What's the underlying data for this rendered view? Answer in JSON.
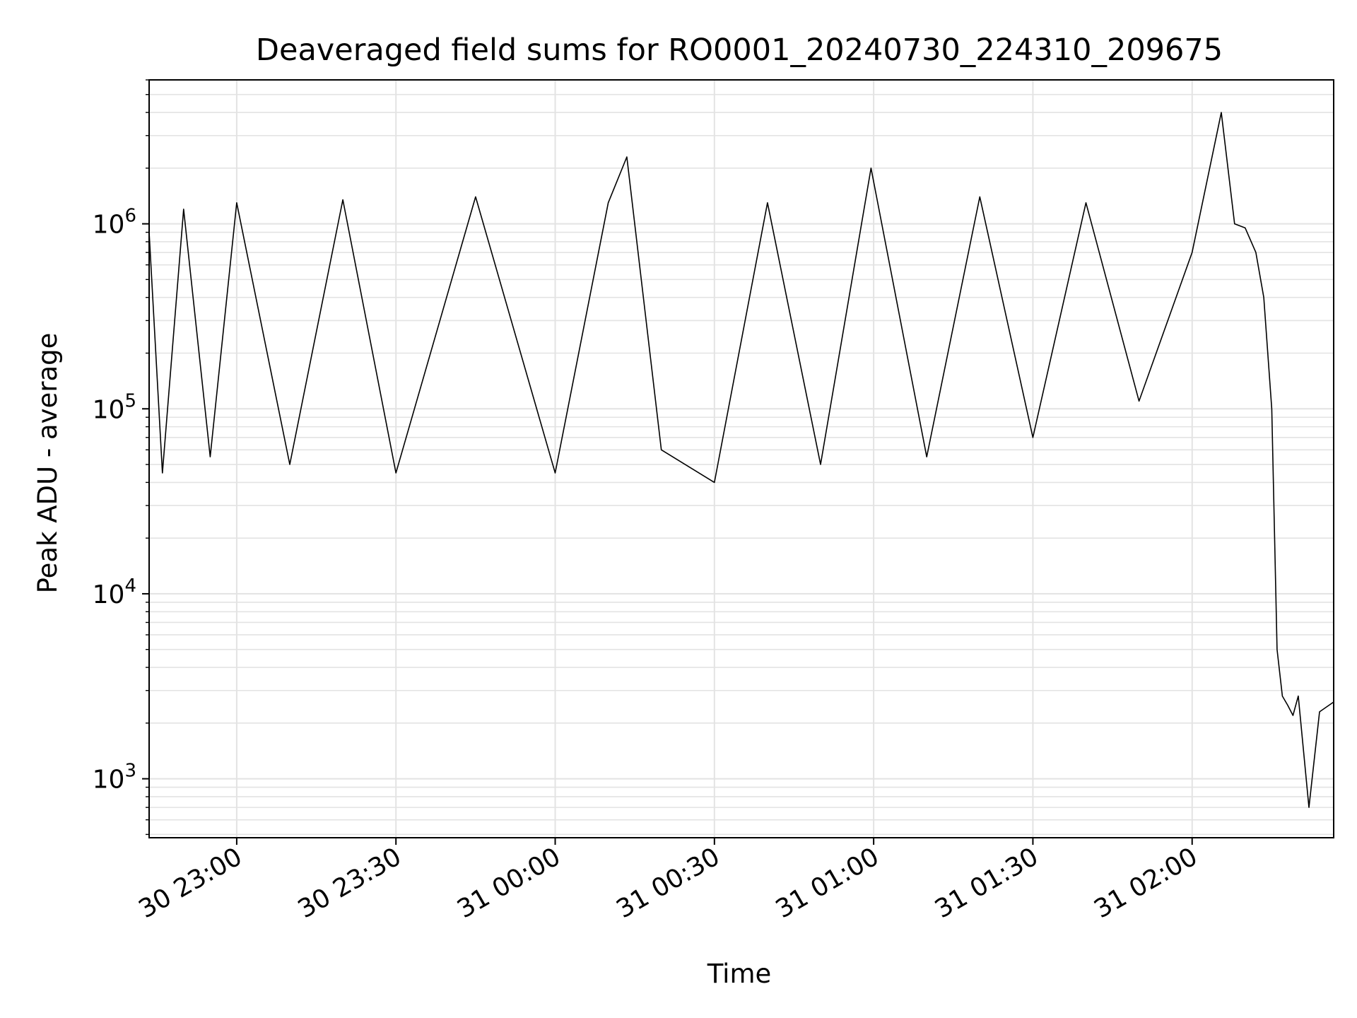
{
  "chart_data": {
    "type": "line",
    "title": "Deaveraged field sums for RO0001_20240730_224310_209675",
    "xlabel": "Time",
    "ylabel": "Peak ADU - average",
    "yscale": "log",
    "ylim": [
      480,
      6000000
    ],
    "xlim": [
      "2024-07-30 22:43:30",
      "2024-07-31 02:26:40"
    ],
    "grid": true,
    "line_color": "#000000",
    "grid_color": "#e3e3e3",
    "x_ticks": [
      {
        "t": "2024-07-30 23:00",
        "label": "30 23:00"
      },
      {
        "t": "2024-07-30 23:30",
        "label": "30 23:30"
      },
      {
        "t": "2024-07-31 00:00",
        "label": "31 00:00"
      },
      {
        "t": "2024-07-31 00:30",
        "label": "31 00:30"
      },
      {
        "t": "2024-07-31 01:00",
        "label": "31 01:00"
      },
      {
        "t": "2024-07-31 01:30",
        "label": "31 01:30"
      },
      {
        "t": "2024-07-31 02:00",
        "label": "31 02:00"
      }
    ],
    "y_ticks": [
      {
        "value": 1000,
        "base": "10",
        "exp": "3"
      },
      {
        "value": 10000,
        "base": "10",
        "exp": "4"
      },
      {
        "value": 100000,
        "base": "10",
        "exp": "5"
      },
      {
        "value": 1000000,
        "base": "10",
        "exp": "6"
      }
    ],
    "series": [
      {
        "x": [
          "2024-07-30 22:43:30",
          "2024-07-30 22:46:00",
          "2024-07-30 22:50:00",
          "2024-07-30 22:55:00",
          "2024-07-30 23:00:00",
          "2024-07-30 23:10:00",
          "2024-07-30 23:20:00",
          "2024-07-30 23:30:00",
          "2024-07-30 23:45:00",
          "2024-07-31 00:00:00",
          "2024-07-31 00:10:00",
          "2024-07-31 00:13:30",
          "2024-07-31 00:20:00",
          "2024-07-31 00:30:00",
          "2024-07-31 00:40:00",
          "2024-07-31 00:50:00",
          "2024-07-31 00:59:30",
          "2024-07-31 01:10:00",
          "2024-07-31 01:20:00",
          "2024-07-31 01:30:00",
          "2024-07-31 01:40:00",
          "2024-07-31 01:50:00",
          "2024-07-31 02:00:00",
          "2024-07-31 02:05:30",
          "2024-07-31 02:08:00",
          "2024-07-31 02:10:00",
          "2024-07-31 02:12:00",
          "2024-07-31 02:13:30",
          "2024-07-31 02:15:00",
          "2024-07-31 02:16:00",
          "2024-07-31 02:17:00",
          "2024-07-31 02:18:00",
          "2024-07-31 02:19:00",
          "2024-07-31 02:20:00",
          "2024-07-31 02:22:00",
          "2024-07-31 02:24:00",
          "2024-07-31 02:26:40"
        ],
        "y": [
          900000,
          45000,
          1200000,
          55000,
          1300000,
          50000,
          1350000,
          45000,
          1400000,
          45000,
          1300000,
          2300000,
          60000,
          40000,
          1300000,
          50000,
          2000000,
          55000,
          1400000,
          70000,
          1300000,
          110000,
          700000,
          4000000,
          1000000,
          950000,
          700000,
          400000,
          100000,
          5000,
          2800,
          2500,
          2200,
          2800,
          700,
          2300,
          2600
        ]
      }
    ]
  }
}
